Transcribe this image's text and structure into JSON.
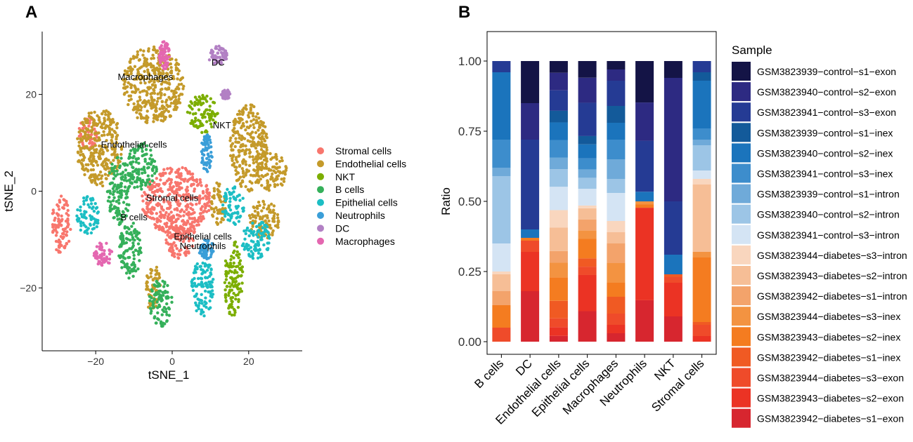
{
  "chart_data": [
    {
      "panel": "A",
      "type": "scatter",
      "xlabel": "tSNE_1",
      "ylabel": "tSNE_2",
      "xlim": [
        -34,
        34
      ],
      "ylim": [
        -33,
        33
      ],
      "xticks": [
        -20,
        0,
        20
      ],
      "yticks": [
        -20,
        0,
        20
      ],
      "legend_position": "right",
      "clusters": [
        {
          "name": "Stromal cells",
          "color": "#F8766D",
          "label_at": [
            0,
            -2
          ]
        },
        {
          "name": "Endothelial cells",
          "color": "#C49A2A",
          "label_at": [
            -10,
            9
          ]
        },
        {
          "name": "NKT",
          "color": "#7CAE00",
          "label_at": [
            13,
            13
          ]
        },
        {
          "name": "B cells",
          "color": "#35B05A",
          "label_at": [
            -10,
            -6
          ]
        },
        {
          "name": "Epithelial cells",
          "color": "#1CBEC4",
          "label_at": [
            8,
            -10
          ]
        },
        {
          "name": "Neutrophils",
          "color": "#3A9ED8",
          "label_at": [
            8,
            -12
          ]
        },
        {
          "name": "DC",
          "color": "#B280C4",
          "label_at": [
            12,
            26
          ]
        },
        {
          "name": "Macrophages",
          "color": "#E467B0",
          "label_at": [
            -7,
            23
          ]
        }
      ],
      "blobs": [
        {
          "c": 0,
          "x": 1,
          "y": -2,
          "rx": 9,
          "ry": 7
        },
        {
          "c": 0,
          "x": 2,
          "y": -9,
          "rx": 4,
          "ry": 5
        },
        {
          "c": 0,
          "x": -29,
          "y": -7,
          "rx": 2.5,
          "ry": 6
        },
        {
          "c": 0,
          "x": -22,
          "y": 12,
          "rx": 2.5,
          "ry": 3.5
        },
        {
          "c": 1,
          "x": -5,
          "y": 22,
          "rx": 8,
          "ry": 8
        },
        {
          "c": 1,
          "x": -19,
          "y": 9,
          "rx": 6,
          "ry": 8
        },
        {
          "c": 1,
          "x": 20,
          "y": 9,
          "rx": 5,
          "ry": 9
        },
        {
          "c": 1,
          "x": 26,
          "y": 4,
          "rx": 4,
          "ry": 4
        },
        {
          "c": 1,
          "x": 24,
          "y": -6,
          "rx": 4,
          "ry": 4
        },
        {
          "c": 1,
          "x": 12,
          "y": -3,
          "rx": 2,
          "ry": 5
        },
        {
          "c": 1,
          "x": -5,
          "y": -20,
          "rx": 2,
          "ry": 5
        },
        {
          "c": 2,
          "x": 8,
          "y": 16,
          "rx": 4,
          "ry": 4
        },
        {
          "c": 2,
          "x": 16,
          "y": -18,
          "rx": 2.5,
          "ry": 8
        },
        {
          "c": 3,
          "x": -8,
          "y": 5,
          "rx": 4,
          "ry": 5
        },
        {
          "c": 3,
          "x": -14,
          "y": 0,
          "rx": 3,
          "ry": 7
        },
        {
          "c": 3,
          "x": -11,
          "y": -12,
          "rx": 3,
          "ry": 6
        },
        {
          "c": 3,
          "x": -3,
          "y": -23,
          "rx": 3,
          "ry": 5
        },
        {
          "c": 4,
          "x": -22,
          "y": -5,
          "rx": 3,
          "ry": 4
        },
        {
          "c": 4,
          "x": 16,
          "y": -3,
          "rx": 3,
          "ry": 4
        },
        {
          "c": 4,
          "x": 8,
          "y": -20,
          "rx": 3,
          "ry": 6
        },
        {
          "c": 4,
          "x": 22,
          "y": -10,
          "rx": 4,
          "ry": 4
        },
        {
          "c": 5,
          "x": 9,
          "y": 8,
          "rx": 1.5,
          "ry": 4
        },
        {
          "c": 5,
          "x": 9,
          "y": -12,
          "rx": 2,
          "ry": 2
        },
        {
          "c": 6,
          "x": 12,
          "y": 28,
          "rx": 2.5,
          "ry": 2
        },
        {
          "c": 6,
          "x": 14,
          "y": 20,
          "rx": 1.2,
          "ry": 1
        },
        {
          "c": 7,
          "x": -2,
          "y": 28,
          "rx": 1.5,
          "ry": 3
        },
        {
          "c": 7,
          "x": -18,
          "y": -13,
          "rx": 2.5,
          "ry": 2.5
        }
      ]
    },
    {
      "panel": "B",
      "type": "bar",
      "stacked": true,
      "ylabel": "Ratio",
      "ylim": [
        0,
        1
      ],
      "yticks": [
        "0.00",
        "0.25",
        "0.50",
        "0.75",
        "1.00"
      ],
      "legend_title": "Sample",
      "legend_position": "right",
      "categories": [
        "B cells",
        "DC",
        "Endothelial cells",
        "Epithelial cells",
        "Macrophages",
        "Neutrophils",
        "NKT",
        "Stromal cells"
      ],
      "series": [
        {
          "name": "GSM3823942−diabetes−s1−exon",
          "color": "#D7262F",
          "values": [
            0.0,
            0.18,
            0.02,
            0.11,
            0.03,
            0.13,
            0.09,
            0.0
          ]
        },
        {
          "name": "GSM3823943−diabetes−s2−exon",
          "color": "#EB3324",
          "values": [
            0.0,
            0.14,
            0.03,
            0.13,
            0.03,
            0.29,
            0.12,
            0.02
          ]
        },
        {
          "name": "GSM3823944−diabetes−s3−exon",
          "color": "#EF4B2A",
          "values": [
            0.05,
            0.04,
            0.03,
            0.03,
            0.04,
            0.0,
            0.02,
            0.04
          ]
        },
        {
          "name": "GSM3823942−diabetes−s1−inex",
          "color": "#F05A23",
          "values": [
            0.0,
            0.0,
            0.06,
            0.03,
            0.06,
            0.0,
            0.01,
            0.01
          ]
        },
        {
          "name": "GSM3823943−diabetes−s2−inex",
          "color": "#F47C20",
          "values": [
            0.08,
            0.01,
            0.08,
            0.07,
            0.05,
            0.01,
            0.0,
            0.23
          ]
        },
        {
          "name": "GSM3823944−diabetes−s3−inex",
          "color": "#F39341",
          "values": [
            0.0,
            0.0,
            0.05,
            0.03,
            0.07,
            0.01,
            0.0,
            0.02
          ]
        },
        {
          "name": "GSM3823942−diabetes−s1−intron",
          "color": "#F3A36B",
          "values": [
            0.05,
            0.0,
            0.04,
            0.04,
            0.07,
            0.0,
            0.0,
            0.0
          ]
        },
        {
          "name": "GSM3823943−diabetes−s2−intron",
          "color": "#F6BE96",
          "values": [
            0.06,
            0.0,
            0.08,
            0.04,
            0.04,
            0.0,
            0.0,
            0.24
          ]
        },
        {
          "name": "GSM3823944−diabetes−s3−intron",
          "color": "#F9D6BE",
          "values": [
            0.01,
            0.0,
            0.06,
            0.01,
            0.04,
            0.0,
            0.0,
            0.02
          ]
        },
        {
          "name": "GSM3823941−control−s3−intron",
          "color": "#D4E4F4",
          "values": [
            0.1,
            0.0,
            0.08,
            0.06,
            0.1,
            0.0,
            0.0,
            0.03
          ]
        },
        {
          "name": "GSM3823940−control−s2−intron",
          "color": "#9CC5E6",
          "values": [
            0.24,
            0.0,
            0.06,
            0.04,
            0.05,
            0.0,
            0.0,
            0.09
          ]
        },
        {
          "name": "GSM3823939−control−s1−intron",
          "color": "#6FAAD9",
          "values": [
            0.03,
            0.0,
            0.04,
            0.03,
            0.07,
            0.0,
            0.0,
            0.02
          ]
        },
        {
          "name": "GSM3823941−control−s3−inex",
          "color": "#3D8DCC",
          "values": [
            0.1,
            0.0,
            0.06,
            0.04,
            0.07,
            0.0,
            0.0,
            0.04
          ]
        },
        {
          "name": "GSM3823940−control−s2−inex",
          "color": "#1B74BC",
          "values": [
            0.24,
            0.03,
            0.06,
            0.05,
            0.06,
            0.03,
            0.07,
            0.17
          ]
        },
        {
          "name": "GSM3823939−control−s1−inex",
          "color": "#135A9A",
          "values": [
            0.0,
            0.0,
            0.04,
            0.03,
            0.06,
            0.0,
            0.0,
            0.03
          ]
        },
        {
          "name": "GSM3823941−control−s3−exon",
          "color": "#253B94",
          "values": [
            0.04,
            0.32,
            0.07,
            0.12,
            0.09,
            0.16,
            0.19,
            0.04
          ]
        },
        {
          "name": "GSM3823940−control−s2−exon",
          "color": "#2D2A82",
          "values": [
            0.0,
            0.13,
            0.06,
            0.09,
            0.04,
            0.12,
            0.44,
            0.0
          ]
        },
        {
          "name": "GSM3823939−control−s1−exon",
          "color": "#141446",
          "values": [
            0.0,
            0.15,
            0.04,
            0.06,
            0.03,
            0.13,
            0.06,
            0.0
          ]
        }
      ]
    }
  ],
  "panel_labels": {
    "a": "A",
    "b": "B"
  }
}
